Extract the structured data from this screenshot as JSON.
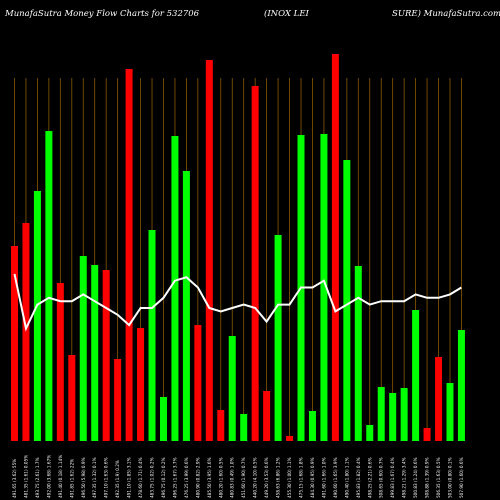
{
  "chart_data": {
    "type": "bar",
    "title_left": "MunafaSutra  Money Flow  Charts for 532706",
    "title_mid": "(INOX   LEI",
    "title_right": "SURE) MunafaSutra.com",
    "colors": {
      "background": "#000000",
      "up": "#00ff00",
      "down": "#ff0000",
      "grid": "#8b5a00",
      "line": "#ffffff"
    },
    "grid": true,
    "line_range": [
      0,
      100
    ],
    "bars": [
      {
        "x": "491.65 (3.62) 55%",
        "value": 195,
        "dir": "down",
        "line": 49
      },
      {
        "x": "481.35 (1.61) 0.05%",
        "value": 218,
        "dir": "down",
        "line": 33
      },
      {
        "x": "493.75 (2.61) 1.7%",
        "value": 250,
        "dir": "up",
        "line": 40
      },
      {
        "x": "492.00 (3.68) 1.67%",
        "value": 310,
        "dir": "up",
        "line": 42
      },
      {
        "x": "491.40 (0.18) 1.14%",
        "value": 158,
        "dir": "down",
        "line": 41
      },
      {
        "x": "491.85 (1.62) 22%",
        "value": 86,
        "dir": "down",
        "line": 41
      },
      {
        "x": "496.50 (5.98) 0.9%",
        "value": 185,
        "dir": "up",
        "line": 43
      },
      {
        "x": "497.35 (1.32) 0.1%",
        "value": 176,
        "dir": "up",
        "line": 41
      },
      {
        "x": "497.10 (1.63) 0.6%",
        "value": 171,
        "dir": "down",
        "line": 39
      },
      {
        "x": "492.35 (1.9) 0.2%",
        "value": 82,
        "dir": "down",
        "line": 37
      },
      {
        "x": "491.10 (1.85) 3.1%",
        "value": 372,
        "dir": "down",
        "line": 34
      },
      {
        "x": "478.60 (1.71) 0.4%",
        "value": 113,
        "dir": "down",
        "line": 39
      },
      {
        "x": "483.75 (1.02) 0.2%",
        "value": 211,
        "dir": "up",
        "line": 39
      },
      {
        "x": "496.75 (0.12) 0.2%",
        "value": 44,
        "dir": "up",
        "line": 42
      },
      {
        "x": "496.25 (1.67) 3.7%",
        "value": 305,
        "dir": "up",
        "line": 47
      },
      {
        "x": "476.25 (3.99) 0.6%",
        "value": 270,
        "dir": "up",
        "line": 48
      },
      {
        "x": "480.90 (0.82) 2.9%",
        "value": 116,
        "dir": "down",
        "line": 45
      },
      {
        "x": "485.50 (3.95) 1.6%",
        "value": 381,
        "dir": "down",
        "line": 39
      },
      {
        "x": "480.20 (1.60) 0.5%",
        "value": 31,
        "dir": "down",
        "line": 38
      },
      {
        "x": "480.83 (0.49) 1.0%",
        "value": 105,
        "dir": "up",
        "line": 39
      },
      {
        "x": "451.60 (1.90) 0.7%",
        "value": 27,
        "dir": "up",
        "line": 40
      },
      {
        "x": "440.20 (4.10) 0.5%",
        "value": 355,
        "dir": "down",
        "line": 39
      },
      {
        "x": "449.20 (3.53) 0.6%",
        "value": 50,
        "dir": "down",
        "line": 35
      },
      {
        "x": "458.63 (6.86) 1.2%",
        "value": 206,
        "dir": "up",
        "line": 40
      },
      {
        "x": "455.30 (1.00) 1.1%",
        "value": 5,
        "dir": "down",
        "line": 40
      },
      {
        "x": "475.15 (1.68) 1.8%",
        "value": 306,
        "dir": "up",
        "line": 45
      },
      {
        "x": "484.30 (0.95) 0.9%",
        "value": 30,
        "dir": "up",
        "line": 45
      },
      {
        "x": "491.60 (1.66) 1.0%",
        "value": 307,
        "dir": "up",
        "line": 47
      },
      {
        "x": "490.60 (1.65) 3.9%",
        "value": 387,
        "dir": "down",
        "line": 38
      },
      {
        "x": "490.40 (1.80) 1.1%",
        "value": 281,
        "dir": "up",
        "line": 40
      },
      {
        "x": "495.83 (1.82) 0.4%",
        "value": 175,
        "dir": "up",
        "line": 42
      },
      {
        "x": "498.25 (2.21) 0.6%",
        "value": 16,
        "dir": "up",
        "line": 40
      },
      {
        "x": "508.65 (0.60) 0.7%",
        "value": 54,
        "dir": "up",
        "line": 41
      },
      {
        "x": "499.83 (1.67) 0.4%",
        "value": 48,
        "dir": "up",
        "line": 41
      },
      {
        "x": "498.21 (1.29) 3.4%",
        "value": 53,
        "dir": "up",
        "line": 41
      },
      {
        "x": "500.83 (1.24) 0.6%",
        "value": 131,
        "dir": "up",
        "line": 43
      },
      {
        "x": "508.88 (1.39) 0.9%",
        "value": 13,
        "dir": "down",
        "line": 42
      },
      {
        "x": "506.35 (1.63) 0.5%",
        "value": 84,
        "dir": "down",
        "line": 42
      },
      {
        "x": "503.00 (0.80) 0.1%",
        "value": 58,
        "dir": "up",
        "line": 43
      },
      {
        "x": "507.90 (1.60) 0.6%",
        "value": 111,
        "dir": "up",
        "line": 45
      }
    ]
  }
}
